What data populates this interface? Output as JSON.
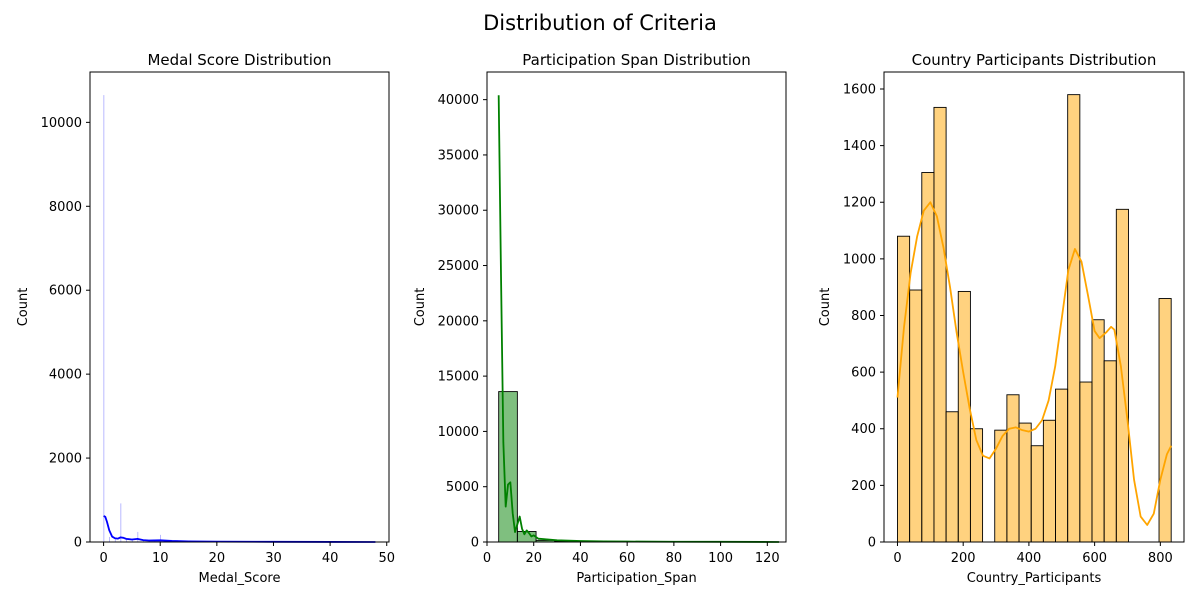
{
  "figure": {
    "title": "Distribution of Criteria"
  },
  "chart_data": [
    {
      "type": "histogram",
      "title": "Medal Score Distribution",
      "xlabel": "Medal_Score",
      "ylabel": "Count",
      "xlim": [
        -2.4,
        50.4
      ],
      "ylim": [
        0,
        11200
      ],
      "xticks": [
        0,
        10,
        20,
        30,
        40,
        50
      ],
      "yticks": [
        0,
        2000,
        4000,
        6000,
        8000,
        10000
      ],
      "bar_color": "#0000ff",
      "kde_color": "#0000ff",
      "bars": [
        {
          "x0": 0.0,
          "x1": 0.1,
          "count": 10650
        },
        {
          "x0": 1.0,
          "x1": 1.1,
          "count": 120
        },
        {
          "x0": 2.0,
          "x1": 2.1,
          "count": 80
        },
        {
          "x0": 3.0,
          "x1": 3.1,
          "count": 920
        },
        {
          "x0": 4.0,
          "x1": 4.1,
          "count": 90
        },
        {
          "x0": 5.0,
          "x1": 5.1,
          "count": 60
        },
        {
          "x0": 6.0,
          "x1": 6.1,
          "count": 240
        },
        {
          "x0": 7.0,
          "x1": 7.1,
          "count": 50
        },
        {
          "x0": 8.0,
          "x1": 8.1,
          "count": 40
        },
        {
          "x0": 9.0,
          "x1": 9.1,
          "count": 30
        },
        {
          "x0": 10.0,
          "x1": 10.1,
          "count": 170
        },
        {
          "x0": 12.0,
          "x1": 12.1,
          "count": 50
        },
        {
          "x0": 13.0,
          "x1": 13.1,
          "count": 40
        },
        {
          "x0": 15.0,
          "x1": 15.1,
          "count": 30
        },
        {
          "x0": 20.0,
          "x1": 20.1,
          "count": 20
        }
      ],
      "kde": [
        [
          0,
          620
        ],
        [
          0.3,
          600
        ],
        [
          0.6,
          480
        ],
        [
          1.0,
          280
        ],
        [
          1.5,
          130
        ],
        [
          2.0,
          90
        ],
        [
          2.5,
          80
        ],
        [
          3.0,
          110
        ],
        [
          3.5,
          100
        ],
        [
          4.0,
          75
        ],
        [
          5.0,
          60
        ],
        [
          6.0,
          75
        ],
        [
          7.0,
          45
        ],
        [
          8.0,
          35
        ],
        [
          10.0,
          40
        ],
        [
          12.0,
          25
        ],
        [
          15.0,
          15
        ],
        [
          20.0,
          8
        ],
        [
          30.0,
          4
        ],
        [
          40.0,
          2
        ],
        [
          48.0,
          0
        ]
      ]
    },
    {
      "type": "histogram",
      "title": "Participation Span Distribution",
      "xlabel": "Participation_Span",
      "ylabel": "Count",
      "xlim": [
        0,
        128
      ],
      "ylim": [
        0,
        42500
      ],
      "xticks": [
        0,
        20,
        40,
        60,
        80,
        100,
        120
      ],
      "yticks": [
        0,
        5000,
        10000,
        15000,
        20000,
        25000,
        30000,
        35000,
        40000
      ],
      "bar_color": "#008000",
      "kde_color": "#008000",
      "bars": [
        {
          "x0": 5,
          "x1": 13,
          "count": 13600
        },
        {
          "x0": 13,
          "x1": 21,
          "count": 950
        },
        {
          "x0": 21,
          "x1": 29,
          "count": 150
        },
        {
          "x0": 29,
          "x1": 37,
          "count": 60
        },
        {
          "x0": 37,
          "x1": 45,
          "count": 30
        },
        {
          "x0": 45,
          "x1": 53,
          "count": 20
        },
        {
          "x0": 53,
          "x1": 61,
          "count": 15
        },
        {
          "x0": 61,
          "x1": 69,
          "count": 10
        },
        {
          "x0": 69,
          "x1": 77,
          "count": 8
        },
        {
          "x0": 77,
          "x1": 85,
          "count": 6
        },
        {
          "x0": 85,
          "x1": 93,
          "count": 5
        },
        {
          "x0": 93,
          "x1": 101,
          "count": 4
        },
        {
          "x0": 101,
          "x1": 109,
          "count": 3
        },
        {
          "x0": 109,
          "x1": 117,
          "count": 2
        },
        {
          "x0": 117,
          "x1": 125,
          "count": 2
        }
      ],
      "kde": [
        [
          5,
          40400
        ],
        [
          6,
          24000
        ],
        [
          7,
          9000
        ],
        [
          8,
          3200
        ],
        [
          9,
          5200
        ],
        [
          10,
          5400
        ],
        [
          11,
          2600
        ],
        [
          12,
          900
        ],
        [
          13,
          1600
        ],
        [
          14,
          2300
        ],
        [
          15,
          1200
        ],
        [
          16,
          700
        ],
        [
          17,
          1050
        ],
        [
          18,
          800
        ],
        [
          19,
          500
        ],
        [
          20,
          600
        ],
        [
          22,
          300
        ],
        [
          25,
          250
        ],
        [
          30,
          160
        ],
        [
          40,
          90
        ],
        [
          50,
          60
        ],
        [
          60,
          40
        ],
        [
          80,
          25
        ],
        [
          100,
          15
        ],
        [
          125,
          0
        ]
      ]
    },
    {
      "type": "histogram",
      "title": "Country Participants Distribution",
      "xlabel": "Country_Participants",
      "ylabel": "Count",
      "xlim": [
        -41,
        872
      ],
      "ylim": [
        0,
        1660
      ],
      "xticks": [
        0,
        200,
        400,
        600,
        800
      ],
      "yticks": [
        0,
        200,
        400,
        600,
        800,
        1000,
        1200,
        1400,
        1600
      ],
      "bar_color": "#ffa500",
      "kde_color": "#ffa500",
      "bars": [
        {
          "x0": 0,
          "x1": 37,
          "count": 1080
        },
        {
          "x0": 37,
          "x1": 74,
          "count": 890
        },
        {
          "x0": 74,
          "x1": 111,
          "count": 1305
        },
        {
          "x0": 111,
          "x1": 148,
          "count": 1535
        },
        {
          "x0": 148,
          "x1": 185,
          "count": 460
        },
        {
          "x0": 185,
          "x1": 222,
          "count": 885
        },
        {
          "x0": 222,
          "x1": 259,
          "count": 400
        },
        {
          "x0": 296,
          "x1": 333,
          "count": 395
        },
        {
          "x0": 333,
          "x1": 370,
          "count": 520
        },
        {
          "x0": 370,
          "x1": 407,
          "count": 420
        },
        {
          "x0": 407,
          "x1": 444,
          "count": 340
        },
        {
          "x0": 444,
          "x1": 481,
          "count": 430
        },
        {
          "x0": 481,
          "x1": 518,
          "count": 540
        },
        {
          "x0": 518,
          "x1": 555,
          "count": 1580
        },
        {
          "x0": 555,
          "x1": 592,
          "count": 565
        },
        {
          "x0": 592,
          "x1": 629,
          "count": 785
        },
        {
          "x0": 629,
          "x1": 666,
          "count": 640
        },
        {
          "x0": 666,
          "x1": 703,
          "count": 1175
        },
        {
          "x0": 796,
          "x1": 833,
          "count": 860
        }
      ],
      "kde": [
        [
          0,
          510
        ],
        [
          20,
          760
        ],
        [
          40,
          950
        ],
        [
          60,
          1080
        ],
        [
          80,
          1170
        ],
        [
          100,
          1200
        ],
        [
          120,
          1150
        ],
        [
          140,
          1040
        ],
        [
          160,
          900
        ],
        [
          180,
          740
        ],
        [
          200,
          600
        ],
        [
          220,
          470
        ],
        [
          240,
          360
        ],
        [
          260,
          305
        ],
        [
          280,
          295
        ],
        [
          300,
          330
        ],
        [
          320,
          375
        ],
        [
          340,
          400
        ],
        [
          360,
          405
        ],
        [
          380,
          395
        ],
        [
          400,
          390
        ],
        [
          420,
          400
        ],
        [
          440,
          430
        ],
        [
          460,
          500
        ],
        [
          480,
          620
        ],
        [
          500,
          790
        ],
        [
          520,
          960
        ],
        [
          540,
          1035
        ],
        [
          560,
          990
        ],
        [
          580,
          870
        ],
        [
          600,
          745
        ],
        [
          615,
          720
        ],
        [
          635,
          740
        ],
        [
          650,
          760
        ],
        [
          660,
          750
        ],
        [
          680,
          620
        ],
        [
          700,
          430
        ],
        [
          720,
          220
        ],
        [
          740,
          90
        ],
        [
          760,
          60
        ],
        [
          780,
          100
        ],
        [
          800,
          220
        ],
        [
          820,
          310
        ],
        [
          833,
          340
        ]
      ]
    }
  ]
}
